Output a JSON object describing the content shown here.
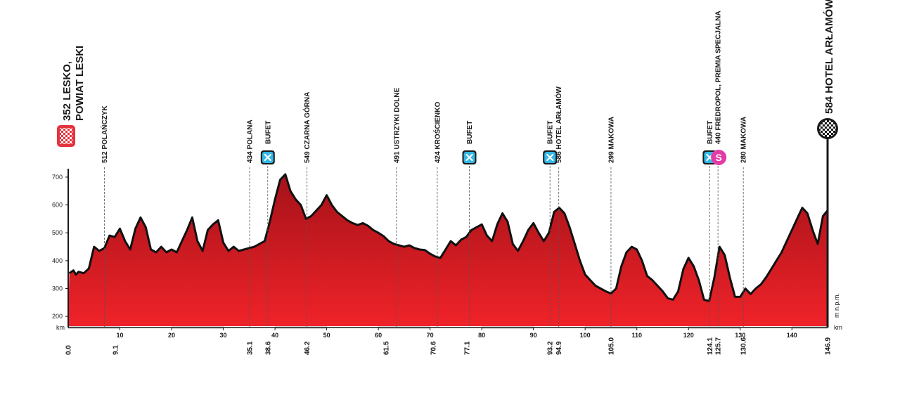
{
  "chart_data": {
    "type": "area",
    "x_unit": "km",
    "y_unit": "m n.p.m.",
    "xlim": [
      0,
      146.9
    ],
    "ylim": [
      160,
      720
    ],
    "y_ticks": [
      200,
      300,
      400,
      500,
      600,
      700
    ],
    "x_ticks": [
      10,
      20,
      30,
      40,
      50,
      60,
      70,
      80,
      90,
      100,
      110,
      120,
      130,
      140
    ],
    "distance_markers": [
      "0.0",
      "9.1",
      "35.1",
      "38.6",
      "46.2",
      "61.5",
      "70.6",
      "77.1",
      "93.2",
      "94.9",
      "105.0",
      "124.1",
      "125.7",
      "130.6",
      "146.9"
    ],
    "start": {
      "elevation": "352",
      "line1": "LESKO,",
      "line2": "POWIAT LESKI",
      "km": 0.0
    },
    "finish": {
      "elevation": "584",
      "name": "HOTEL ARŁAMÓW",
      "km": 146.9
    },
    "waypoints": [
      {
        "km": 7.0,
        "label": "512 POLAŃCZYK"
      },
      {
        "km": 35.1,
        "label": "434 POLANA"
      },
      {
        "km": 38.6,
        "label": "BUFET",
        "icon": "feed"
      },
      {
        "km": 46.2,
        "label": "549 CZARNA GÓRNA"
      },
      {
        "km": 63.5,
        "label": "491 USTRZYKI DOLNE"
      },
      {
        "km": 71.4,
        "label": "424 KROŚCIENKO"
      },
      {
        "km": 77.6,
        "label": "BUFET",
        "icon": "feed"
      },
      {
        "km": 93.2,
        "label": "BUFET",
        "icon": "feed"
      },
      {
        "km": 94.9,
        "label": "586 HOTEL ARŁAMÓW"
      },
      {
        "km": 105.0,
        "label": "299 MAKOWA"
      },
      {
        "km": 124.1,
        "label": "BUFET",
        "icon": "feed"
      },
      {
        "km": 125.7,
        "label": "440 FREDROPOL, PREMIA SPECJALNA",
        "icon": "sprint"
      },
      {
        "km": 130.6,
        "label": "280 MAKOWA"
      }
    ],
    "profile": [
      [
        0,
        160
      ],
      [
        0.2,
        355
      ],
      [
        1,
        365
      ],
      [
        1.5,
        350
      ],
      [
        2,
        360
      ],
      [
        3,
        355
      ],
      [
        4,
        372
      ],
      [
        5,
        450
      ],
      [
        6,
        435
      ],
      [
        7,
        445
      ],
      [
        8,
        490
      ],
      [
        9,
        485
      ],
      [
        10,
        515
      ],
      [
        11,
        470
      ],
      [
        12,
        440
      ],
      [
        13,
        515
      ],
      [
        14,
        555
      ],
      [
        15,
        520
      ],
      [
        16,
        440
      ],
      [
        17,
        430
      ],
      [
        18,
        450
      ],
      [
        19,
        430
      ],
      [
        20,
        440
      ],
      [
        21,
        430
      ],
      [
        22,
        470
      ],
      [
        23,
        510
      ],
      [
        24,
        555
      ],
      [
        25,
        470
      ],
      [
        26,
        435
      ],
      [
        27,
        510
      ],
      [
        28,
        530
      ],
      [
        29,
        545
      ],
      [
        30,
        465
      ],
      [
        31,
        435
      ],
      [
        32,
        450
      ],
      [
        33,
        435
      ],
      [
        34,
        440
      ],
      [
        35,
        445
      ],
      [
        36,
        450
      ],
      [
        37,
        460
      ],
      [
        38,
        470
      ],
      [
        39,
        540
      ],
      [
        40,
        620
      ],
      [
        41,
        690
      ],
      [
        42,
        710
      ],
      [
        43,
        650
      ],
      [
        44,
        620
      ],
      [
        45,
        600
      ],
      [
        46,
        550
      ],
      [
        47,
        560
      ],
      [
        48,
        580
      ],
      [
        49,
        600
      ],
      [
        50,
        635
      ],
      [
        51,
        600
      ],
      [
        52,
        575
      ],
      [
        53,
        560
      ],
      [
        54,
        545
      ],
      [
        55,
        535
      ],
      [
        56,
        528
      ],
      [
        57,
        535
      ],
      [
        58,
        525
      ],
      [
        59,
        510
      ],
      [
        60,
        500
      ],
      [
        61,
        488
      ],
      [
        62,
        470
      ],
      [
        63,
        460
      ],
      [
        64,
        455
      ],
      [
        65,
        450
      ],
      [
        66,
        455
      ],
      [
        67,
        445
      ],
      [
        68,
        440
      ],
      [
        69,
        438
      ],
      [
        70,
        425
      ],
      [
        71,
        415
      ],
      [
        72,
        410
      ],
      [
        73,
        440
      ],
      [
        74,
        470
      ],
      [
        75,
        455
      ],
      [
        76,
        475
      ],
      [
        77,
        485
      ],
      [
        78,
        510
      ],
      [
        79,
        520
      ],
      [
        80,
        530
      ],
      [
        81,
        490
      ],
      [
        82,
        470
      ],
      [
        83,
        530
      ],
      [
        84,
        570
      ],
      [
        85,
        540
      ],
      [
        86,
        460
      ],
      [
        87,
        435
      ],
      [
        88,
        470
      ],
      [
        89,
        510
      ],
      [
        90,
        535
      ],
      [
        91,
        500
      ],
      [
        92,
        470
      ],
      [
        93,
        500
      ],
      [
        94,
        575
      ],
      [
        95,
        590
      ],
      [
        96,
        570
      ],
      [
        97,
        520
      ],
      [
        98,
        460
      ],
      [
        99,
        400
      ],
      [
        100,
        350
      ],
      [
        101,
        330
      ],
      [
        102,
        310
      ],
      [
        103,
        300
      ],
      [
        104,
        290
      ],
      [
        105,
        282
      ],
      [
        106,
        300
      ],
      [
        107,
        380
      ],
      [
        108,
        430
      ],
      [
        109,
        450
      ],
      [
        110,
        440
      ],
      [
        111,
        400
      ],
      [
        112,
        345
      ],
      [
        113,
        330
      ],
      [
        114,
        310
      ],
      [
        115,
        290
      ],
      [
        116,
        265
      ],
      [
        117,
        260
      ],
      [
        118,
        290
      ],
      [
        119,
        370
      ],
      [
        120,
        410
      ],
      [
        121,
        380
      ],
      [
        122,
        330
      ],
      [
        123,
        260
      ],
      [
        124,
        255
      ],
      [
        125,
        340
      ],
      [
        126,
        450
      ],
      [
        127,
        420
      ],
      [
        128,
        340
      ],
      [
        129,
        270
      ],
      [
        130,
        270
      ],
      [
        131,
        300
      ],
      [
        132,
        280
      ],
      [
        133,
        300
      ],
      [
        134,
        315
      ],
      [
        135,
        340
      ],
      [
        136,
        370
      ],
      [
        137,
        400
      ],
      [
        138,
        430
      ],
      [
        139,
        470
      ],
      [
        140,
        510
      ],
      [
        141,
        550
      ],
      [
        142,
        590
      ],
      [
        143,
        570
      ],
      [
        144,
        510
      ],
      [
        145,
        460
      ],
      [
        146,
        560
      ],
      [
        146.9,
        580
      ],
      [
        146.9,
        160
      ]
    ],
    "colors": {
      "fill_top": "#b5161d",
      "fill_bottom": "#ef2128",
      "outline": "#111111",
      "feed_icon": "#33b7e6",
      "sprint_icon": "#e23ba6",
      "axis": "#1a1a1a",
      "band_light": "#dcdcdc"
    }
  }
}
